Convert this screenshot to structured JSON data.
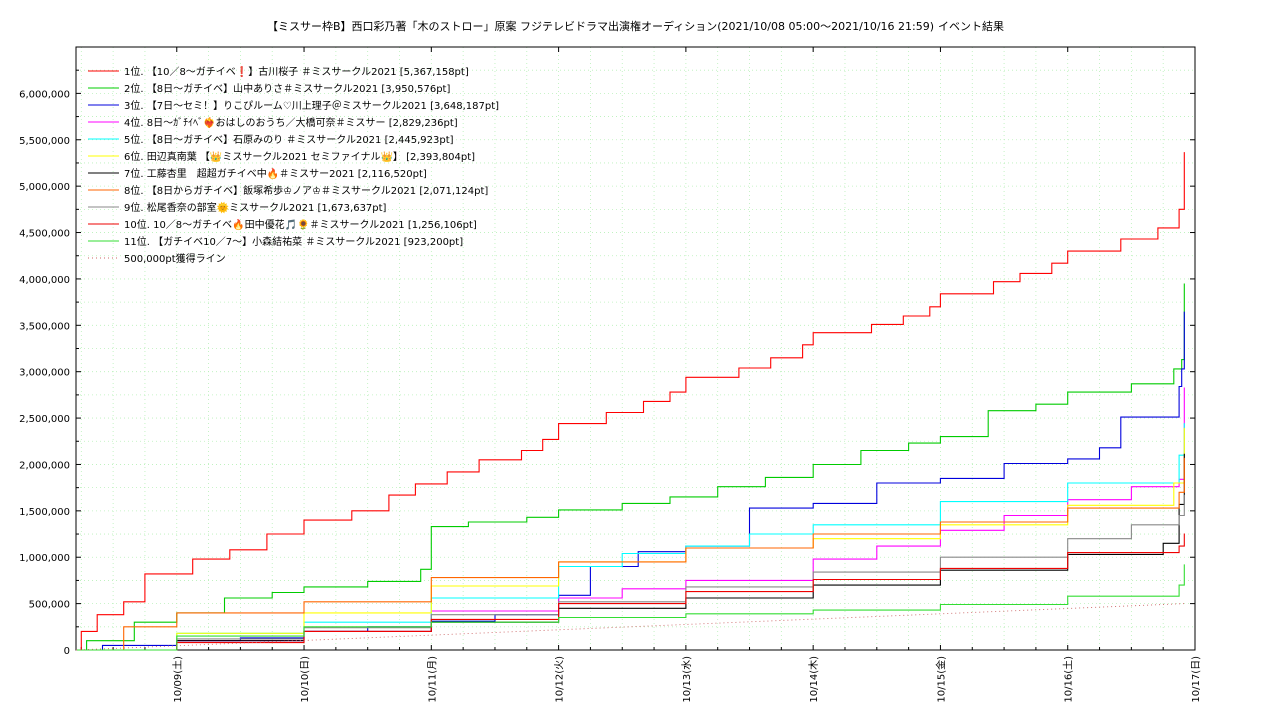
{
  "chart_data": {
    "type": "line",
    "title": "【ミスサー枠B】西口彩乃著「木のストロー」原案 フジテレビドラマ出演権オーディション(2021/10/08 05:00〜2021/10/16 21:59)",
    "subtitle": "イベント結果",
    "xlabel": "",
    "ylabel": "",
    "xlim": [
      "2021-10-08 05:00",
      "2021-10-17 00:00"
    ],
    "ylim": [
      0,
      6500000
    ],
    "y_ticks": [
      0,
      500000,
      1000000,
      1500000,
      2000000,
      2500000,
      3000000,
      3500000,
      4000000,
      4500000,
      5000000,
      5500000,
      6000000
    ],
    "y_tick_labels": [
      "0",
      "500,000",
      "1,000,000",
      "1,500,000",
      "2,000,000",
      "2,500,000",
      "3,000,000",
      "3,500,000",
      "4,000,000",
      "4,500,000",
      "5,000,000",
      "5,500,000",
      "6,000,000"
    ],
    "x_ticks": [
      "2021-10-09 00:00",
      "2021-10-10 00:00",
      "2021-10-11 00:00",
      "2021-10-12 00:00",
      "2021-10-13 00:00",
      "2021-10-14 00:00",
      "2021-10-15 00:00",
      "2021-10-16 00:00",
      "2021-10-17 00:00"
    ],
    "x_tick_labels": [
      "10/09(土)",
      "10/10(日)",
      "10/11(月)",
      "10/12(火)",
      "10/13(水)",
      "10/14(木)",
      "10/15(金)",
      "10/16(土)",
      "10/17(日)"
    ],
    "grid": true,
    "legend_position": "top-left",
    "series": [
      {
        "name": "1位. 【10／8〜ガチイベ❗】古川桜子 ＃ミスサークル2021 [5,367,158pt]",
        "color": "#ff0000",
        "style": "solid",
        "x": [
          "2021-10-08 05:00",
          "2021-10-08 06:00",
          "2021-10-08 09:00",
          "2021-10-08 14:00",
          "2021-10-08 18:00",
          "2021-10-09 03:00",
          "2021-10-09 10:00",
          "2021-10-09 17:00",
          "2021-10-10 00:00",
          "2021-10-10 09:00",
          "2021-10-10 16:00",
          "2021-10-10 21:00",
          "2021-10-11 03:00",
          "2021-10-11 09:00",
          "2021-10-11 17:00",
          "2021-10-11 21:00",
          "2021-10-12 00:00",
          "2021-10-12 09:00",
          "2021-10-12 16:00",
          "2021-10-12 21:00",
          "2021-10-13 00:00",
          "2021-10-13 10:00",
          "2021-10-13 16:00",
          "2021-10-13 22:00",
          "2021-10-14 00:00",
          "2021-10-14 11:00",
          "2021-10-14 17:00",
          "2021-10-14 22:00",
          "2021-10-15 00:00",
          "2021-10-15 10:00",
          "2021-10-15 15:00",
          "2021-10-15 21:00",
          "2021-10-16 00:00",
          "2021-10-16 10:00",
          "2021-10-16 17:00",
          "2021-10-16 21:00",
          "2021-10-16 21:59"
        ],
        "y": [
          0,
          200000,
          380000,
          520000,
          820000,
          980000,
          1080000,
          1250000,
          1400000,
          1500000,
          1670000,
          1790000,
          1920000,
          2050000,
          2150000,
          2270000,
          2440000,
          2560000,
          2680000,
          2780000,
          2940000,
          3040000,
          3150000,
          3290000,
          3420000,
          3510000,
          3600000,
          3700000,
          3840000,
          3970000,
          4060000,
          4170000,
          4300000,
          4430000,
          4550000,
          4750000,
          5367158
        ]
      },
      {
        "name": "2位. 【8日〜ガチイベ】山中ありさ＃ミスサークル2021 [3,950,576pt]",
        "color": "#00cc00",
        "style": "solid",
        "x": [
          "2021-10-08 05:00",
          "2021-10-08 07:00",
          "2021-10-08 16:00",
          "2021-10-09 00:00",
          "2021-10-09 09:00",
          "2021-10-09 18:00",
          "2021-10-10 00:00",
          "2021-10-10 12:00",
          "2021-10-10 22:00",
          "2021-10-11 00:00",
          "2021-10-11 07:00",
          "2021-10-11 18:00",
          "2021-10-12 00:00",
          "2021-10-12 12:00",
          "2021-10-12 21:00",
          "2021-10-13 06:00",
          "2021-10-13 15:00",
          "2021-10-14 00:00",
          "2021-10-14 09:00",
          "2021-10-14 18:00",
          "2021-10-15 00:00",
          "2021-10-15 09:00",
          "2021-10-15 18:00",
          "2021-10-16 00:00",
          "2021-10-16 12:00",
          "2021-10-16 20:00",
          "2021-10-16 21:30",
          "2021-10-16 21:59"
        ],
        "y": [
          0,
          100000,
          300000,
          400000,
          560000,
          620000,
          680000,
          740000,
          870000,
          1330000,
          1380000,
          1430000,
          1510000,
          1580000,
          1650000,
          1760000,
          1860000,
          2000000,
          2150000,
          2230000,
          2300000,
          2580000,
          2650000,
          2780000,
          2870000,
          3030000,
          3130000,
          3950576
        ]
      },
      {
        "name": "3位. 【7日〜セミ！】りこぴルーム♡川上理子＠ミスサークル2021 [3,648,187pt]",
        "color": "#0000dd",
        "style": "solid",
        "x": [
          "2021-10-08 05:00",
          "2021-10-08 10:00",
          "2021-10-09 00:00",
          "2021-10-09 12:00",
          "2021-10-10 00:00",
          "2021-10-10 12:00",
          "2021-10-11 00:00",
          "2021-10-11 12:00",
          "2021-10-12 00:00",
          "2021-10-12 06:00",
          "2021-10-12 15:00",
          "2021-10-13 00:00",
          "2021-10-13 12:00",
          "2021-10-14 00:00",
          "2021-10-14 12:00",
          "2021-10-15 00:00",
          "2021-10-15 12:00",
          "2021-10-16 00:00",
          "2021-10-16 06:00",
          "2021-10-16 10:00",
          "2021-10-16 21:00",
          "2021-10-16 21:30",
          "2021-10-16 21:59"
        ],
        "y": [
          0,
          50000,
          100000,
          130000,
          200000,
          250000,
          310000,
          380000,
          590000,
          900000,
          1060000,
          1120000,
          1530000,
          1580000,
          1800000,
          1850000,
          2010000,
          2060000,
          2180000,
          2510000,
          2840000,
          3030000,
          3648187
        ]
      },
      {
        "name": "4位. 8日〜ｶﾞﾁｲﾍﾞ❤️‍🔥おはしのおうち／大橋可奈＃ミスサー [2,829,236pt]",
        "color": "#ff00ff",
        "style": "solid",
        "x": [
          "2021-10-08 05:00",
          "2021-10-09 00:00",
          "2021-10-10 00:00",
          "2021-10-11 00:00",
          "2021-10-12 00:00",
          "2021-10-12 12:00",
          "2021-10-13 00:00",
          "2021-10-14 00:00",
          "2021-10-14 12:00",
          "2021-10-15 00:00",
          "2021-10-15 12:00",
          "2021-10-16 00:00",
          "2021-10-16 12:00",
          "2021-10-16 21:00",
          "2021-10-16 21:59"
        ],
        "y": [
          0,
          100000,
          200000,
          420000,
          560000,
          660000,
          750000,
          980000,
          1120000,
          1290000,
          1450000,
          1620000,
          1760000,
          1840000,
          2829236
        ]
      },
      {
        "name": "5位. 【8日〜ガチイベ】石原みのり ＃ミスサークル2021 [2,445,923pt]",
        "color": "#00ffff",
        "style": "solid",
        "x": [
          "2021-10-08 05:00",
          "2021-10-09 00:00",
          "2021-10-10 00:00",
          "2021-10-11 00:00",
          "2021-10-12 00:00",
          "2021-10-12 12:00",
          "2021-10-13 00:00",
          "2021-10-13 12:00",
          "2021-10-14 00:00",
          "2021-10-15 00:00",
          "2021-10-16 00:00",
          "2021-10-16 21:00",
          "2021-10-16 21:59"
        ],
        "y": [
          0,
          180000,
          300000,
          560000,
          900000,
          1040000,
          1120000,
          1250000,
          1350000,
          1600000,
          1800000,
          2100000,
          2445923
        ]
      },
      {
        "name": "6位. 田辺真南葉 【👑ミスサークル2021 セミファイナル👑】 [2,393,804pt]",
        "color": "#ffff00",
        "style": "solid",
        "x": [
          "2021-10-08 05:00",
          "2021-10-09 00:00",
          "2021-10-10 00:00",
          "2021-10-11 00:00",
          "2021-10-12 00:00",
          "2021-10-13 00:00",
          "2021-10-14 00:00",
          "2021-10-15 00:00",
          "2021-10-16 00:00",
          "2021-10-16 20:00",
          "2021-10-16 21:59"
        ],
        "y": [
          0,
          180000,
          400000,
          690000,
          950000,
          1100000,
          1200000,
          1350000,
          1560000,
          1800000,
          2393804
        ]
      },
      {
        "name": "7位. 工藤杏里　超超ガチイベ中🔥＃ミスサー2021 [2,116,520pt]",
        "color": "#000000",
        "style": "solid",
        "x": [
          "2021-10-08 05:00",
          "2021-10-09 00:00",
          "2021-10-10 00:00",
          "2021-10-11 00:00",
          "2021-10-12 00:00",
          "2021-10-13 00:00",
          "2021-10-14 00:00",
          "2021-10-15 00:00",
          "2021-10-16 00:00",
          "2021-10-16 18:00",
          "2021-10-16 21:00",
          "2021-10-16 21:59"
        ],
        "y": [
          0,
          100000,
          200000,
          300000,
          450000,
          560000,
          700000,
          860000,
          1030000,
          1150000,
          1570000,
          2116520
        ]
      },
      {
        "name": "8位. 【8日からガチイベ】飯塚希歩♔ノア♔＃ミスサークル2021 [2,071,124pt]",
        "color": "#ff6600",
        "style": "solid",
        "x": [
          "2021-10-08 05:00",
          "2021-10-08 14:00",
          "2021-10-09 00:00",
          "2021-10-10 00:00",
          "2021-10-11 00:00",
          "2021-10-12 00:00",
          "2021-10-13 00:00",
          "2021-10-14 00:00",
          "2021-10-15 00:00",
          "2021-10-16 00:00",
          "2021-10-16 21:00",
          "2021-10-16 21:59"
        ],
        "y": [
          0,
          250000,
          400000,
          520000,
          780000,
          950000,
          1100000,
          1250000,
          1380000,
          1530000,
          1700000,
          2071124
        ]
      },
      {
        "name": "9位. 松尾香奈の部室🌞ミスサークル2021 [1,673,637pt]",
        "color": "#888888",
        "style": "solid",
        "x": [
          "2021-10-08 05:00",
          "2021-10-09 00:00",
          "2021-10-10 00:00",
          "2021-10-11 00:00",
          "2021-10-12 00:00",
          "2021-10-13 00:00",
          "2021-10-14 00:00",
          "2021-10-15 00:00",
          "2021-10-16 00:00",
          "2021-10-16 12:00",
          "2021-10-16 21:00",
          "2021-10-16 21:59"
        ],
        "y": [
          0,
          120000,
          240000,
          380000,
          520000,
          680000,
          840000,
          1000000,
          1200000,
          1350000,
          1450000,
          1673637
        ]
      },
      {
        "name": "10位. 10／8〜ガチイベ🔥田中優花🎵🌻＃ミスサークル2021 [1,256,106pt]",
        "color": "#ee0000",
        "style": "solid",
        "x": [
          "2021-10-08 05:00",
          "2021-10-09 00:00",
          "2021-10-10 00:00",
          "2021-10-11 00:00",
          "2021-10-12 00:00",
          "2021-10-13 00:00",
          "2021-10-14 00:00",
          "2021-10-15 00:00",
          "2021-10-16 00:00",
          "2021-10-16 21:00",
          "2021-10-16 21:59"
        ],
        "y": [
          0,
          80000,
          200000,
          330000,
          500000,
          630000,
          760000,
          880000,
          1050000,
          1120000,
          1256106
        ]
      },
      {
        "name": "11位. 【ガチイベ10／7〜】小森結祐菜 ＃ミスサークル2021 [923,200pt]",
        "color": "#33dd33",
        "style": "solid",
        "x": [
          "2021-10-08 05:00",
          "2021-10-09 00:00",
          "2021-10-10 00:00",
          "2021-10-11 00:00",
          "2021-10-12 00:00",
          "2021-10-13 00:00",
          "2021-10-14 00:00",
          "2021-10-15 00:00",
          "2021-10-16 00:00",
          "2021-10-16 21:00",
          "2021-10-16 21:59"
        ],
        "y": [
          0,
          150000,
          250000,
          300000,
          350000,
          390000,
          430000,
          490000,
          580000,
          700000,
          923200
        ]
      },
      {
        "name": "500,000pt獲得ライン",
        "color": "#cc6666",
        "style": "dotted",
        "x": [
          "2021-10-08 05:00",
          "2021-10-16 21:59"
        ],
        "y": [
          0,
          500000
        ]
      }
    ]
  }
}
